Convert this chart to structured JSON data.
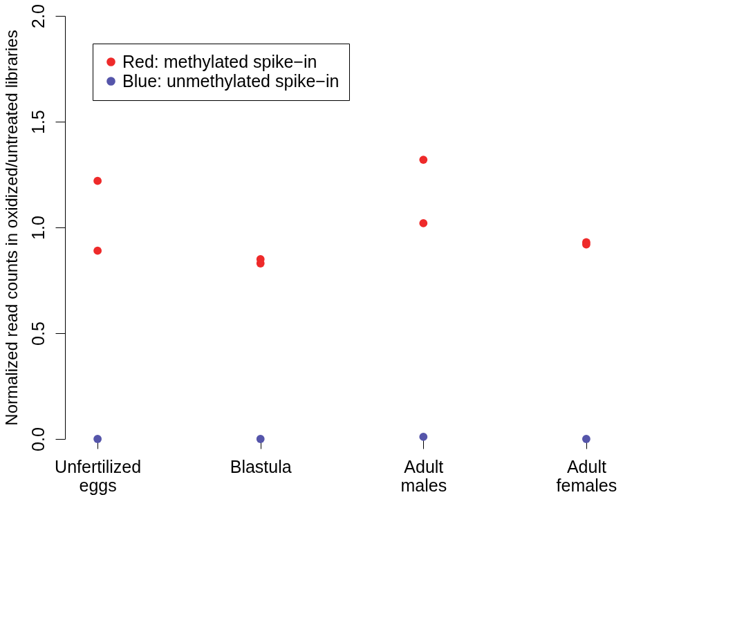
{
  "chart_data": {
    "type": "scatter",
    "ylabel": "Normalized read counts in oxidized/untreated libraries",
    "categories": [
      "Unfertilized eggs",
      "Blastula",
      "Adult males",
      "Adult females"
    ],
    "series": [
      {
        "name": "Red: methylated spike−in",
        "color": "#ee2a2a",
        "x": [
          "Unfertilized eggs",
          "Unfertilized eggs",
          "Blastula",
          "Blastula",
          "Adult males",
          "Adult males",
          "Adult females",
          "Adult females"
        ],
        "values": [
          1.22,
          0.89,
          0.85,
          0.83,
          1.32,
          1.02,
          0.93,
          0.92
        ]
      },
      {
        "name": "Blue: unmethylated spike−in",
        "color": "#5555aa",
        "x": [
          "Unfertilized eggs",
          "Blastula",
          "Adult males",
          "Adult females"
        ],
        "values": [
          0.0,
          0.0,
          0.01,
          0.0
        ]
      }
    ],
    "ylim": [
      0,
      2
    ],
    "yticks": [
      {
        "value": 0,
        "label": "0.0"
      },
      0.5,
      {
        "value": 1,
        "label": "1.0"
      },
      1.5,
      {
        "value": 2,
        "label": "2.0"
      }
    ],
    "grid": false,
    "legend": "top left"
  }
}
